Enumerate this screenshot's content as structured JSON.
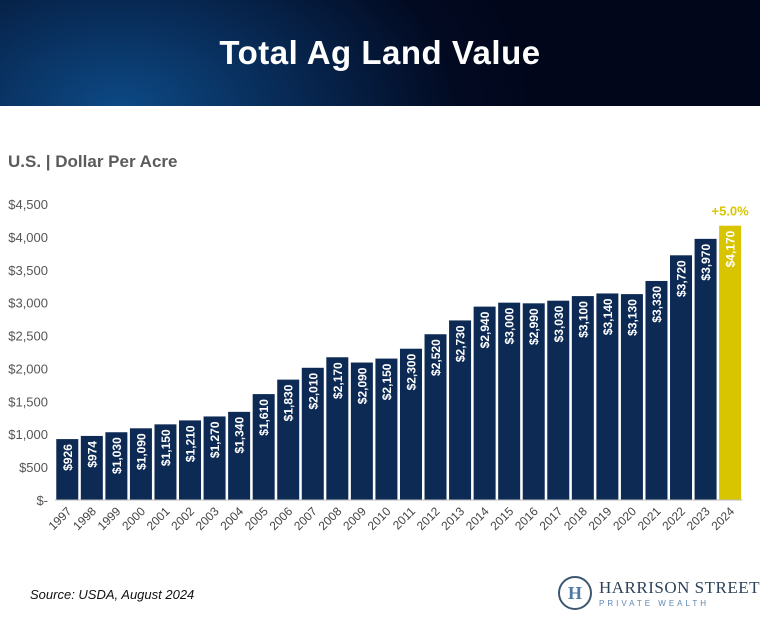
{
  "header": {
    "title": "Total Ag Land Value"
  },
  "subtitle": "U.S. | Dollar Per Acre",
  "source": "Source: USDA, August 2024",
  "logo": {
    "name": "HARRISON STREET",
    "tagline": "PRIVATE WEALTH",
    "mark": "H"
  },
  "colors": {
    "bar": "#0d2a55",
    "highlight": "#d9c400",
    "header": "#04122e"
  },
  "chart_data": {
    "type": "bar",
    "title": "Total Ag Land Value",
    "ylabel": "",
    "xlabel": "",
    "ylim": [
      0,
      4500
    ],
    "yticks": [
      0,
      500,
      1000,
      1500,
      2000,
      2500,
      3000,
      3500,
      4000,
      4500
    ],
    "ytick_labels": [
      "$-",
      "$500",
      "$1,000",
      "$1,500",
      "$2,000",
      "$2,500",
      "$3,000",
      "$3,500",
      "$4,000",
      "$4,500"
    ],
    "grid": false,
    "categories": [
      "1997",
      "1998",
      "1999",
      "2000",
      "2001",
      "2002",
      "2003",
      "2004",
      "2005",
      "2006",
      "2007",
      "2008",
      "2009",
      "2010",
      "2011",
      "2012",
      "2013",
      "2014",
      "2015",
      "2016",
      "2017",
      "2018",
      "2019",
      "2020",
      "2021",
      "2022",
      "2023",
      "2024"
    ],
    "values": [
      926,
      974,
      1030,
      1090,
      1150,
      1210,
      1270,
      1340,
      1610,
      1830,
      2010,
      2170,
      2090,
      2150,
      2300,
      2520,
      2730,
      2940,
      3000,
      2990,
      3030,
      3100,
      3140,
      3130,
      3330,
      3720,
      3970,
      4170
    ],
    "data_labels": [
      "$926",
      "$974",
      "$1,030",
      "$1,090",
      "$1,150",
      "$1,210",
      "$1,270",
      "$1,340",
      "$1,610",
      "$1,830",
      "$2,010",
      "$2,170",
      "$2,090",
      "$2,150",
      "$2,300",
      "$2,520",
      "$2,730",
      "$2,940",
      "$3,000",
      "$2,990",
      "$3,030",
      "$3,100",
      "$3,140",
      "$3,130",
      "$3,330",
      "$3,720",
      "$3,970",
      "$4,170"
    ],
    "highlight_index": 27,
    "annotation": "+5.0%"
  }
}
